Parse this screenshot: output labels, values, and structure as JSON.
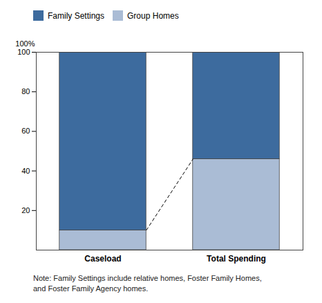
{
  "chart_data": {
    "type": "bar",
    "stacked": true,
    "categories": [
      "Caseload",
      "Total Spending"
    ],
    "series": [
      {
        "name": "Family Settings",
        "color": "#3D6B9E",
        "values": [
          90,
          54
        ]
      },
      {
        "name": "Group Homes",
        "color": "#AABCD5",
        "values": [
          10,
          46
        ]
      }
    ],
    "ylim": [
      0,
      100
    ],
    "yticks": [
      20,
      40,
      60,
      80,
      100
    ],
    "y_label": "100%",
    "annotations": [
      "Note: Family Settings include relative homes, Foster Family Homes,",
      "and Foster Family Agency homes."
    ],
    "legend": "upper left",
    "grid": false
  }
}
